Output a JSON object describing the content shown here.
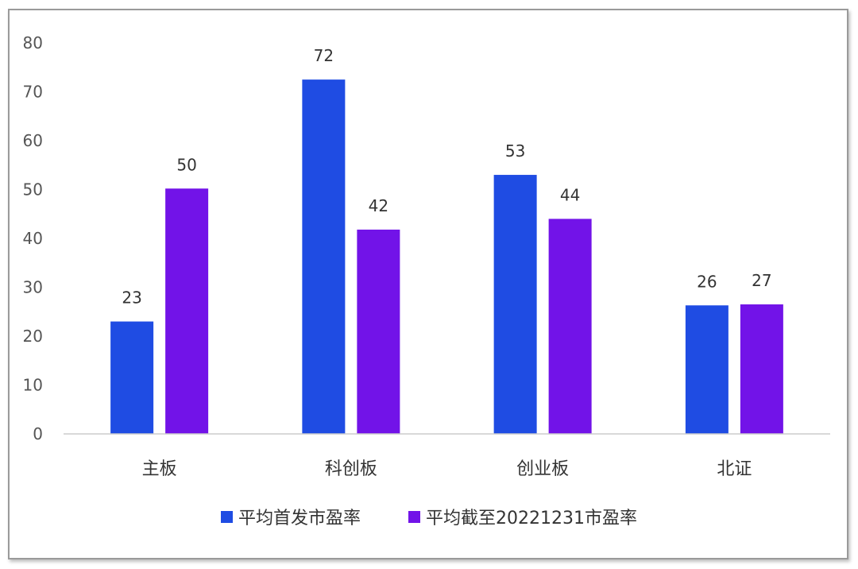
{
  "chart_data": {
    "type": "bar",
    "categories": [
      "主板",
      "科创板",
      "创业板",
      "北证"
    ],
    "series": [
      {
        "name": "平均首发市盈率",
        "values": [
          23,
          72.5,
          53,
          26.3
        ],
        "labels": [
          "23",
          "72",
          "53",
          "26"
        ],
        "color": "#1f4ce3"
      },
      {
        "name": "平均截至20221231市盈率",
        "values": [
          50.2,
          41.8,
          44,
          26.5
        ],
        "labels": [
          "50",
          "42",
          "44",
          "27"
        ],
        "color": "#7213e8"
      }
    ],
    "yticks": [
      "0",
      "10",
      "20",
      "30",
      "40",
      "50",
      "60",
      "70",
      "80"
    ],
    "ylim": [
      0,
      80
    ],
    "grid": false,
    "legend": "bottom"
  }
}
